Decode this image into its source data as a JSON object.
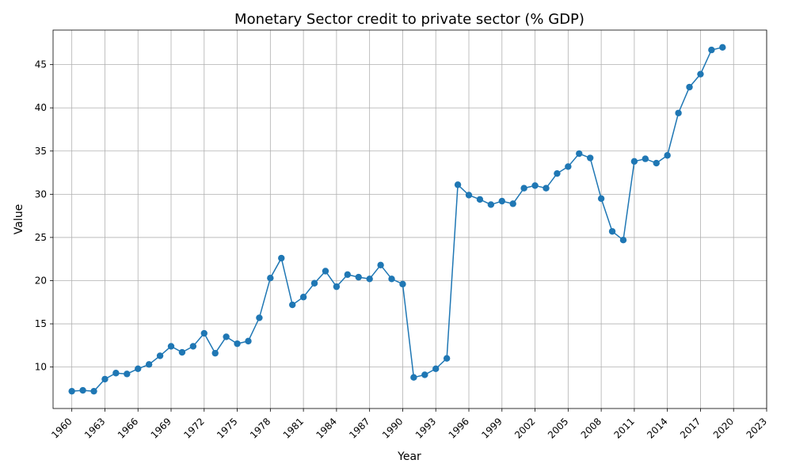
{
  "chart_data": {
    "type": "line",
    "title": "Monetary Sector credit to private sector (% GDP)",
    "xlabel": "Year",
    "ylabel": "Value",
    "xlim": [
      1958.3,
      2023
    ],
    "ylim": [
      5.2,
      49.0
    ],
    "x_ticks": [
      1960,
      1963,
      1966,
      1969,
      1972,
      1975,
      1978,
      1981,
      1984,
      1987,
      1990,
      1993,
      1996,
      1999,
      2002,
      2005,
      2008,
      2011,
      2014,
      2017,
      2020,
      2023
    ],
    "y_ticks": [
      10,
      15,
      20,
      25,
      30,
      35,
      40,
      45
    ],
    "grid": true,
    "color": "#1f77b4",
    "marker": "circle",
    "series": [
      {
        "x": [
          1960,
          1961,
          1962,
          1963,
          1964,
          1965,
          1966,
          1967,
          1968,
          1969,
          1970,
          1971,
          1972,
          1973,
          1974,
          1975,
          1976,
          1977,
          1978,
          1979,
          1980,
          1981,
          1982,
          1983,
          1984,
          1985,
          1986,
          1987,
          1988,
          1989,
          1990,
          1991,
          1992,
          1993,
          1994,
          1995,
          1996,
          1997,
          1998,
          1999,
          2000,
          2001,
          2002,
          2003,
          2004,
          2005,
          2006,
          2007,
          2008,
          2009,
          2010,
          2011,
          2012,
          2013,
          2014,
          2015,
          2016,
          2017,
          2018,
          2019
        ],
        "y": [
          7.2,
          7.3,
          7.2,
          8.6,
          9.3,
          9.2,
          9.8,
          10.3,
          11.3,
          12.4,
          11.7,
          12.4,
          13.9,
          11.6,
          13.5,
          12.7,
          13.0,
          15.7,
          20.3,
          22.6,
          17.2,
          18.1,
          19.7,
          21.1,
          19.3,
          20.7,
          20.4,
          20.2,
          21.8,
          20.2,
          19.6,
          8.8,
          9.1,
          9.8,
          11.0,
          31.1,
          29.9,
          29.4,
          28.8,
          29.2,
          28.9,
          30.7,
          31.0,
          30.7,
          32.4,
          33.2,
          34.7,
          34.2,
          29.5,
          25.7,
          24.7,
          33.8,
          34.1,
          33.6,
          34.5,
          39.4,
          42.4,
          43.9,
          46.7,
          47.0
        ]
      }
    ]
  }
}
